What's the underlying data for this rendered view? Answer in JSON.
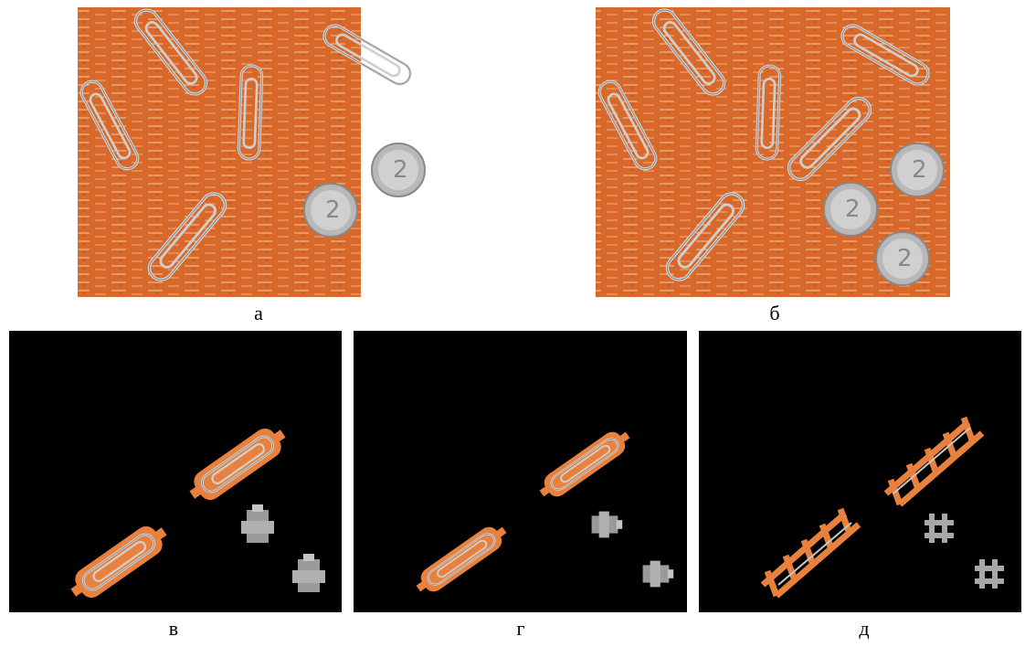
{
  "figure": {
    "panels": [
      {
        "caption": "а"
      },
      {
        "caption": "б"
      },
      {
        "caption": "в"
      },
      {
        "caption": "г"
      },
      {
        "caption": "д"
      }
    ]
  }
}
